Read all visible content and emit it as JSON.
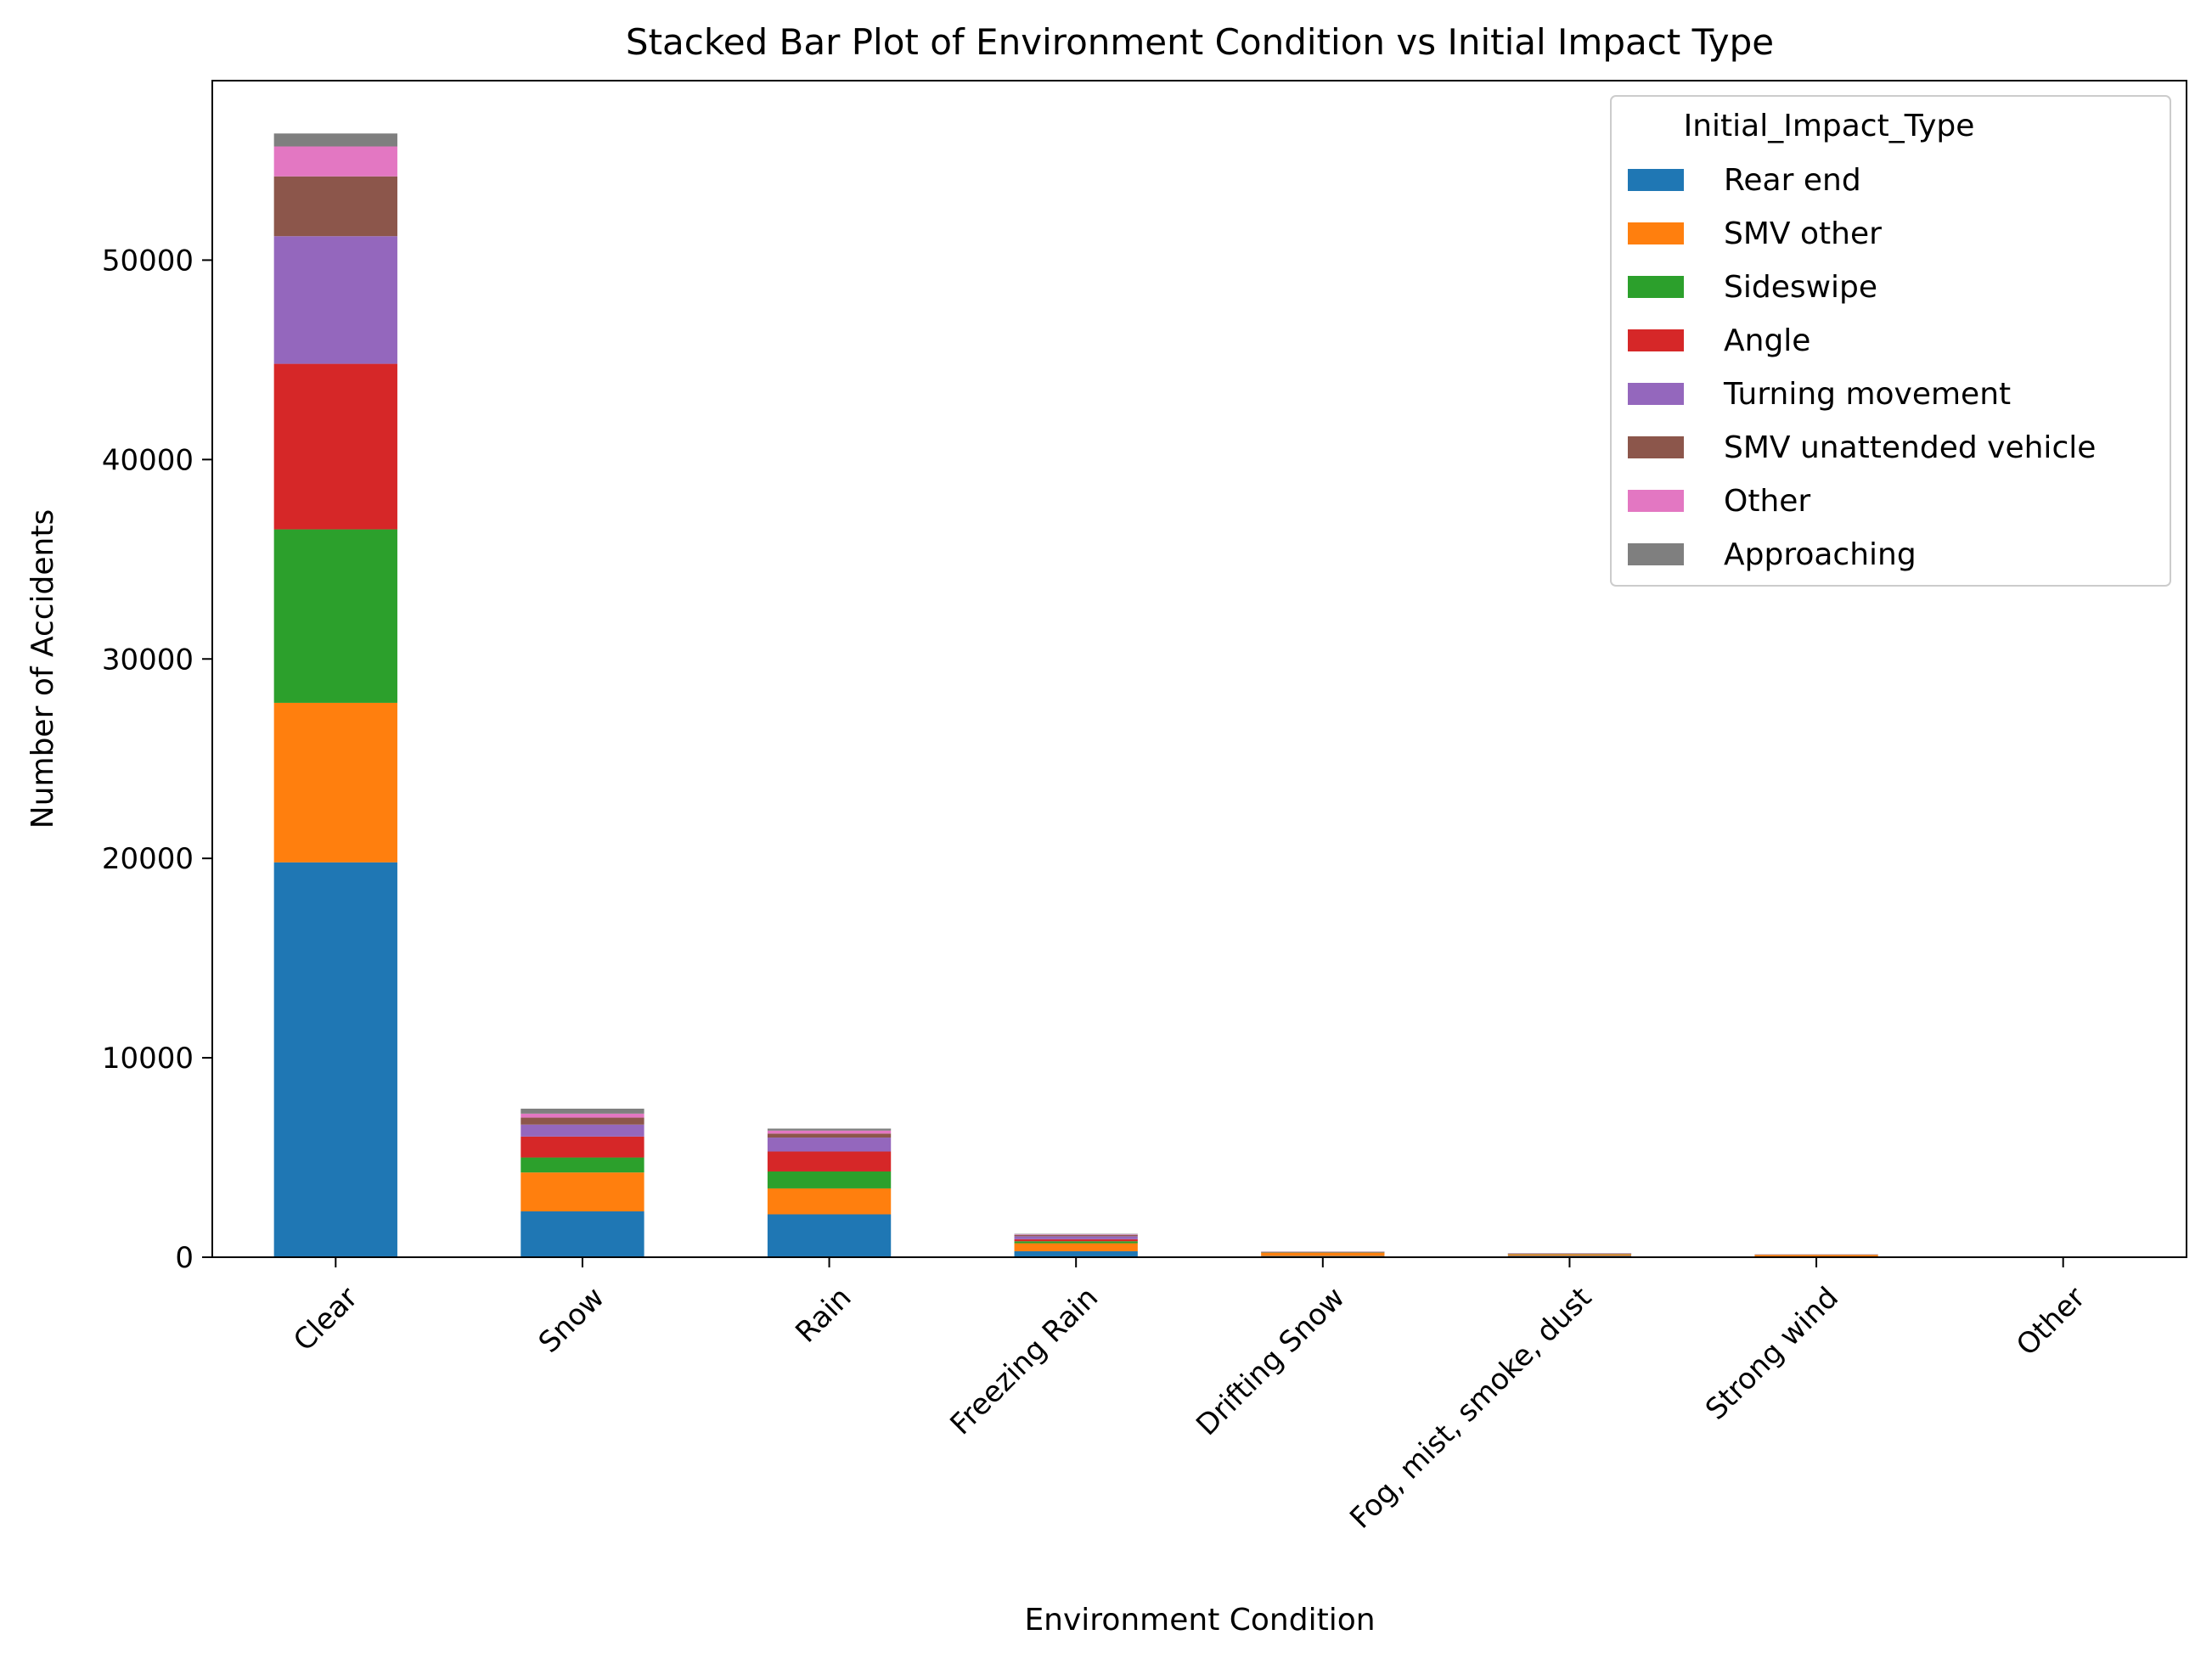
{
  "chart_data": {
    "type": "bar",
    "stacked": true,
    "title": "Stacked Bar Plot of Environment Condition vs Initial Impact Type",
    "xlabel": "Environment Condition",
    "ylabel": "Number of Accidents",
    "ylim": [
      0,
      59000
    ],
    "yticks": [
      "0",
      "10000",
      "20000",
      "30000",
      "40000",
      "50000"
    ],
    "grid": false,
    "legend_position": "top-right",
    "legend_title": "Initial_Impact_Type",
    "categories": [
      "Clear",
      "Snow",
      "Rain",
      "Freezing Rain",
      "Drifting Snow",
      "Fog, mist, smoke, dust",
      "Strong wind",
      "Other"
    ],
    "series": [
      {
        "name": "Rear end",
        "color": "#1f77b4",
        "values": [
          19800,
          2300,
          2150,
          300,
          60,
          70,
          30,
          5
        ]
      },
      {
        "name": "SMV other",
        "color": "#ff7f0e",
        "values": [
          8000,
          1950,
          1300,
          400,
          160,
          70,
          80,
          5
        ]
      },
      {
        "name": "Sideswipe",
        "color": "#2ca02c",
        "values": [
          8700,
          750,
          850,
          100,
          20,
          20,
          10,
          2
        ]
      },
      {
        "name": "Angle",
        "color": "#d62728",
        "values": [
          8300,
          1050,
          1000,
          100,
          15,
          15,
          10,
          2
        ]
      },
      {
        "name": "Turning movement",
        "color": "#9467bd",
        "values": [
          6400,
          600,
          700,
          150,
          10,
          10,
          5,
          2
        ]
      },
      {
        "name": "SMV unattended vehicle",
        "color": "#8c564b",
        "values": [
          3000,
          350,
          200,
          60,
          10,
          10,
          5,
          1
        ]
      },
      {
        "name": "Other",
        "color": "#e377c2",
        "values": [
          1500,
          200,
          150,
          30,
          5,
          5,
          5,
          1
        ]
      },
      {
        "name": "Approaching",
        "color": "#7f7f7f",
        "values": [
          650,
          250,
          100,
          30,
          5,
          5,
          5,
          1
        ]
      }
    ]
  }
}
